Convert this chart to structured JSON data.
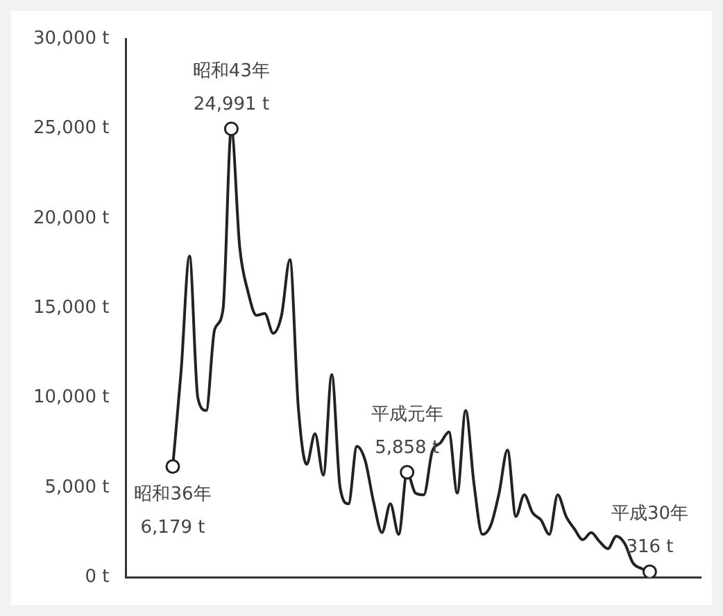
{
  "chart_data": {
    "type": "line",
    "categories": [
      null,
      null,
      null,
      null,
      null,
      null,
      null,
      null,
      null,
      null,
      null,
      null,
      null,
      null,
      null,
      null,
      null,
      null,
      null,
      null,
      null,
      null,
      null,
      null,
      null,
      null,
      null,
      null,
      null,
      null,
      null,
      null,
      null,
      null,
      null,
      null,
      null,
      null,
      null,
      null,
      null,
      null,
      null,
      null,
      null,
      null,
      null,
      null,
      null,
      null,
      null,
      null,
      null,
      null,
      null,
      null,
      null,
      null
    ],
    "series": [
      {
        "color": "#222222",
        "values": [
          6179,
          11500,
          17900,
          10000,
          9300,
          13800,
          14900,
          24991,
          18400,
          15900,
          14600,
          14700,
          13600,
          14600,
          17700,
          9500,
          6300,
          8000,
          5700,
          11300,
          5000,
          4100,
          7300,
          6500,
          4200,
          2500,
          4100,
          2400,
          5858,
          4700,
          4600,
          7000,
          7500,
          8100,
          4700,
          9300,
          5200,
          2400,
          2900,
          4700,
          7100,
          3400,
          4600,
          3600,
          3200,
          2400,
          4600,
          3400,
          2700,
          2100,
          2500,
          2000,
          1600,
          2300,
          1900,
          800,
          500,
          316
        ],
        "value_labels": [
          "昭和36年\n6,179 t",
          null,
          null,
          null,
          null,
          null,
          null,
          "昭和43年\n24,991 t",
          null,
          null,
          null,
          null,
          null,
          null,
          null,
          null,
          null,
          null,
          null,
          null,
          null,
          null,
          null,
          null,
          null,
          null,
          null,
          null,
          "平成元年\n5,858 t",
          null,
          null,
          null,
          null,
          null,
          null,
          null,
          null,
          null,
          null,
          null,
          null,
          null,
          null,
          null,
          null,
          null,
          null,
          null,
          null,
          null,
          null,
          null,
          null,
          null,
          null,
          null,
          null,
          "平成30年\n316 t"
        ]
      }
    ],
    "ylim": [
      0,
      30000
    ],
    "yticks": [
      {
        "value": 0,
        "label": "0 t"
      },
      {
        "value": 5000,
        "label": "5,000 t"
      },
      {
        "value": 10000,
        "label": "10,000 t"
      },
      {
        "value": 15000,
        "label": "15,000 t"
      },
      {
        "value": 20000,
        "label": "20,000 t"
      },
      {
        "value": 25000,
        "label": "25,000 t"
      },
      {
        "value": 30000,
        "label": "30,000 t"
      }
    ],
    "grid": false,
    "legend": false,
    "tick_labels": "y",
    "marker": "none"
  }
}
